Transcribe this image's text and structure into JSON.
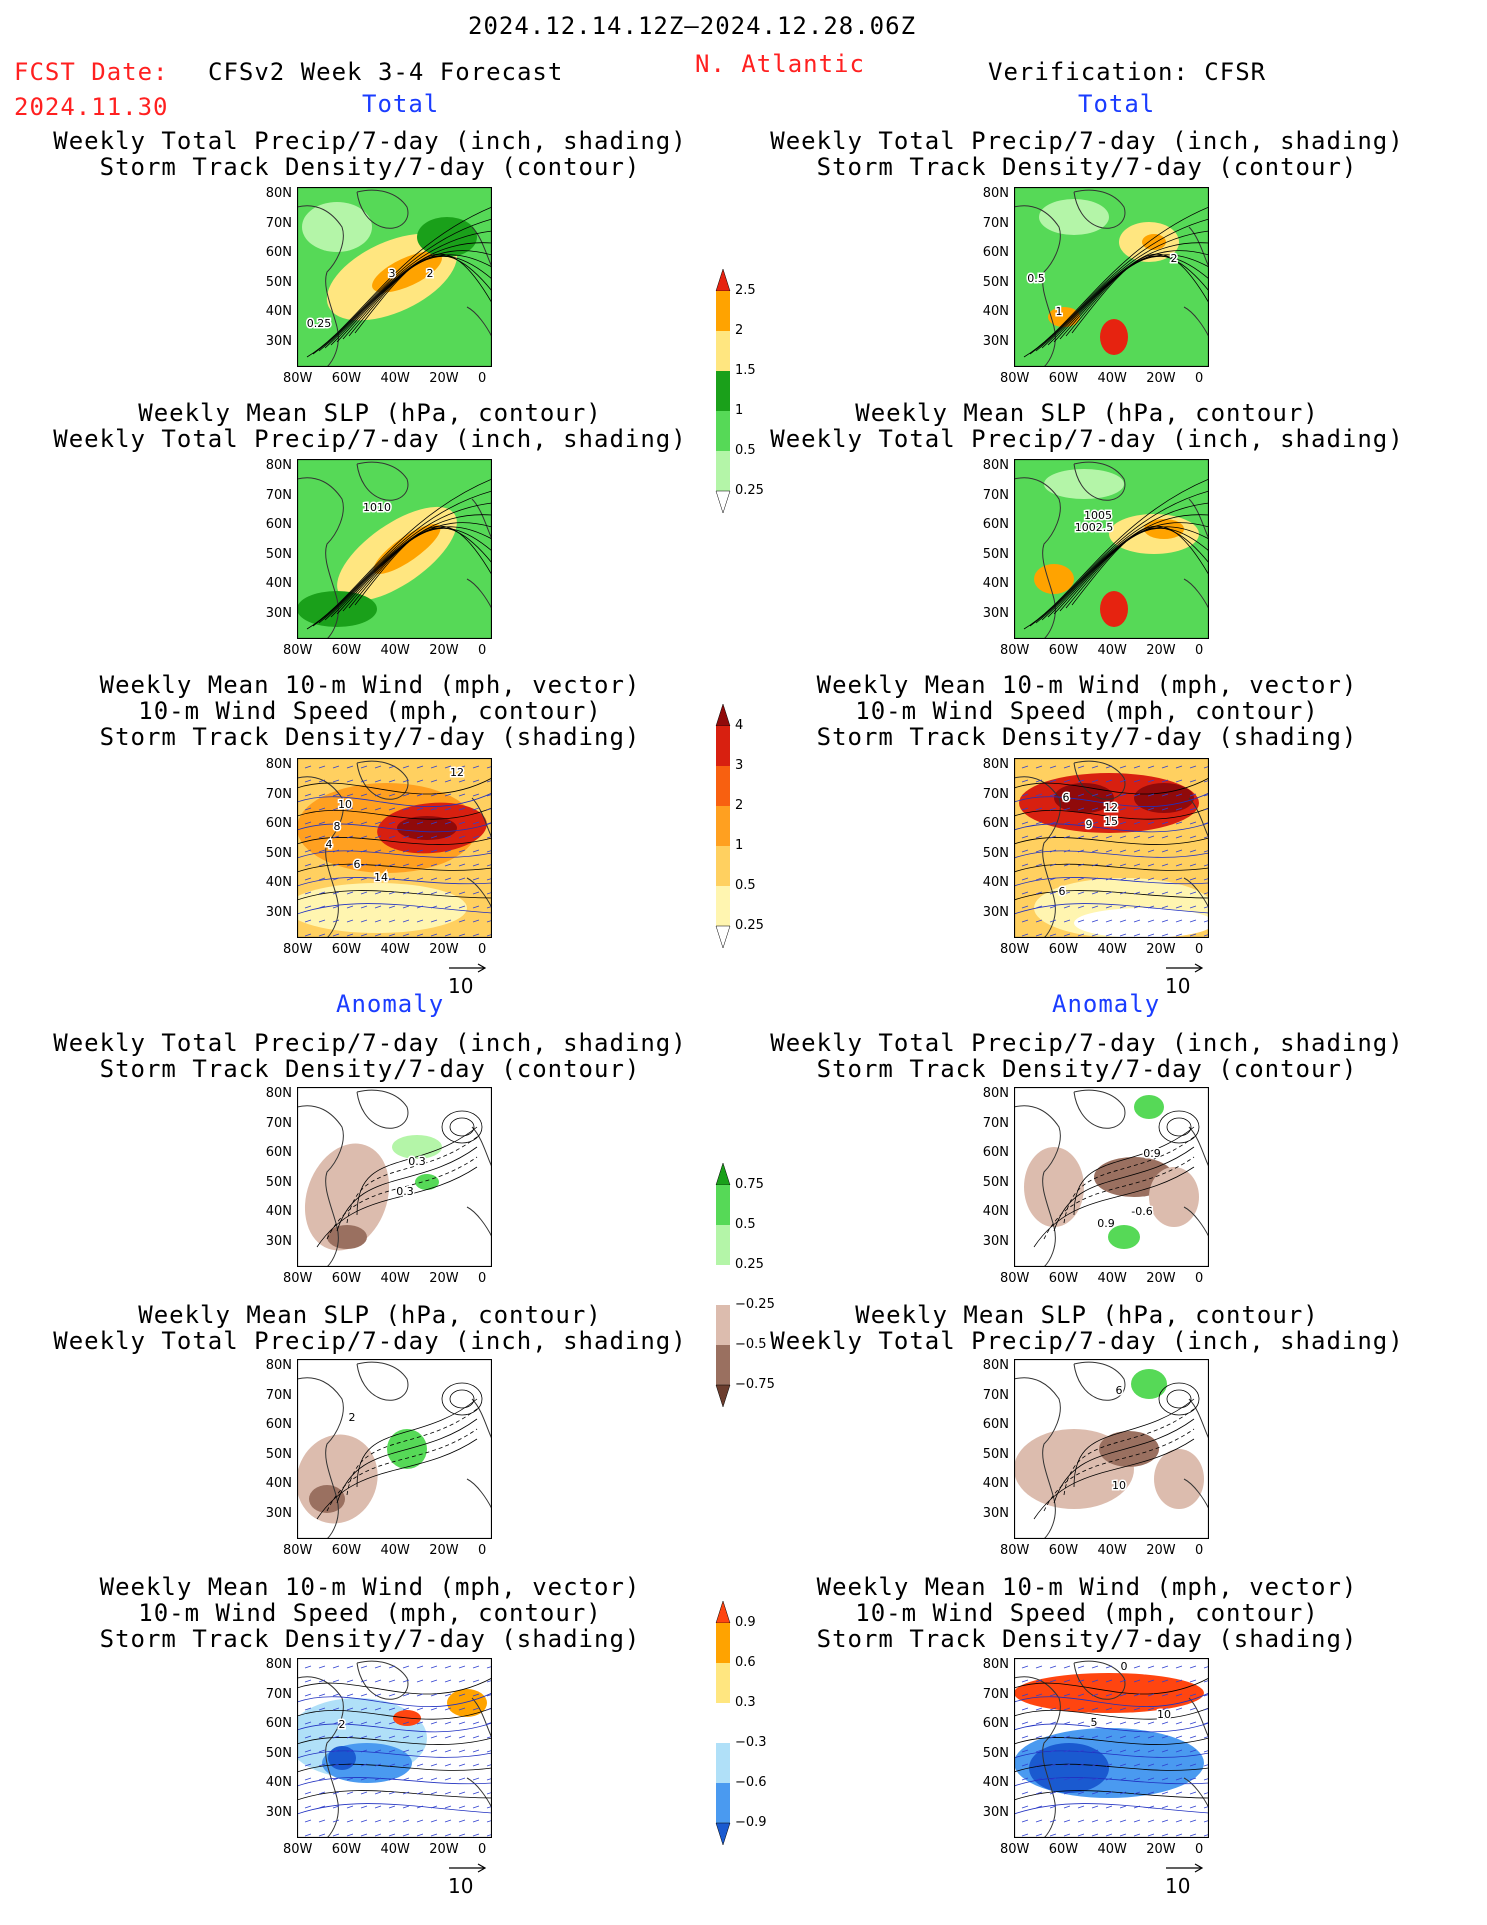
{
  "header": {
    "period": "2024.12.14.12Z–2024.12.28.06Z",
    "fcst_label": "FCST Date:",
    "fcst_date": "2024.11.30",
    "forecast_title": "CFSv2 Week 3-4 Forecast",
    "region": "N. Atlantic",
    "verification": "Verification: CFSR"
  },
  "section_labels": {
    "total": "Total",
    "anomaly": "Anomaly"
  },
  "titles": {
    "precip_storm": [
      "Weekly Total Precip/7-day (inch, shading)",
      "Storm Track Density/7-day (contour)"
    ],
    "slp_precip": [
      "Weekly Mean SLP (hPa, contour)",
      "Weekly Total Precip/7-day (inch, shading)"
    ],
    "wind_storm": [
      "Weekly Mean 10-m Wind (mph, vector)",
      "10-m Wind Speed (mph, contour)",
      "Storm Track Density/7-day (shading)"
    ]
  },
  "axes": {
    "lat_ticks": [
      "80N",
      "70N",
      "60N",
      "50N",
      "40N",
      "30N"
    ],
    "lon_ticks": [
      "80W",
      "60W",
      "40W",
      "20W",
      "0"
    ]
  },
  "vector_reference": "10",
  "colorbars": {
    "precip_total": {
      "colors": [
        "#ffffff",
        "#b4f5a8",
        "#56d957",
        "#1aa01a",
        "#ffe680",
        "#ffa300",
        "#e62310"
      ],
      "labels": [
        "0.25",
        "0.5",
        "1",
        "1.5",
        "2",
        "2.5"
      ]
    },
    "storm_total": {
      "colors": [
        "#ffffff",
        "#fff5b0",
        "#ffd060",
        "#ffa020",
        "#f86010",
        "#d82010",
        "#900a0a"
      ],
      "labels": [
        "0.25",
        "0.5",
        "1",
        "2",
        "3",
        "4"
      ]
    },
    "precip_anom": {
      "colors": [
        "#6b3d2e",
        "#9a7060",
        "#dcbcae",
        "#ffffff",
        "#b4f5a8",
        "#56d957",
        "#1aa01a"
      ],
      "labels": [
        "-0.75",
        "-0.5",
        "-0.25",
        "0.25",
        "0.5",
        "0.75"
      ]
    },
    "storm_anom": {
      "colors": [
        "#1a5ad0",
        "#4a9af0",
        "#b0e0f8",
        "#ffffff",
        "#ffe680",
        "#ffa300",
        "#ff4510"
      ],
      "labels": [
        "-0.9",
        "-0.6",
        "-0.3",
        "0.3",
        "0.6",
        "0.9"
      ]
    }
  },
  "panels": [
    {
      "id": "fcst-total-precip",
      "labels": [
        "3",
        "2",
        "0.25"
      ]
    },
    {
      "id": "fcst-total-slp",
      "labels": [
        "1010"
      ]
    },
    {
      "id": "fcst-total-wind",
      "labels": [
        "12",
        "10",
        "8",
        "4",
        "6",
        "14"
      ]
    },
    {
      "id": "fcst-anom-precip",
      "labels": [
        "0.3",
        "0.3"
      ]
    },
    {
      "id": "fcst-anom-slp",
      "labels": [
        "2"
      ]
    },
    {
      "id": "fcst-anom-wind",
      "labels": [
        "2"
      ]
    },
    {
      "id": "verif-total-precip",
      "labels": [
        "2",
        "0.5",
        "1"
      ]
    },
    {
      "id": "verif-total-slp",
      "labels": [
        "1005",
        "1002.5"
      ]
    },
    {
      "id": "verif-total-wind",
      "labels": [
        "6",
        "12",
        "9",
        "15",
        "6"
      ]
    },
    {
      "id": "verif-anom-precip",
      "labels": [
        "0.9",
        "0.9",
        "-0.6"
      ]
    },
    {
      "id": "verif-anom-slp",
      "labels": [
        "6",
        "10"
      ]
    },
    {
      "id": "verif-anom-wind",
      "labels": [
        "0",
        "5",
        "10"
      ]
    }
  ]
}
